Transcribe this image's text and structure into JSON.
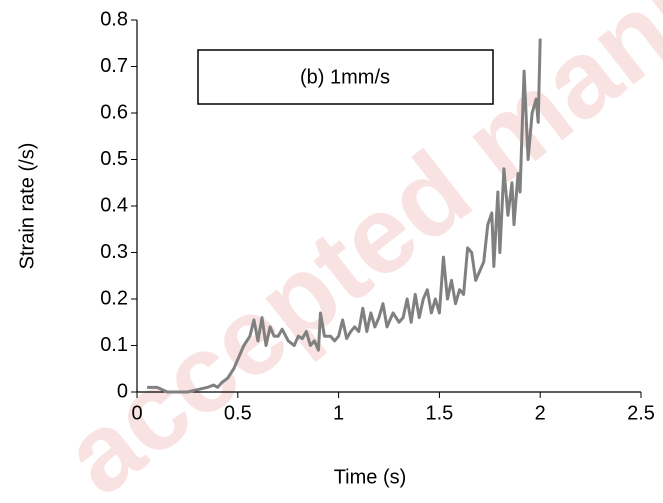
{
  "chart_data": {
    "type": "line",
    "xlabel": "Time (s)",
    "ylabel": "Strain rate (/s)",
    "annotation": "(b)  1mm/s",
    "watermark": "accepted manu",
    "xlim": [
      0,
      2.5
    ],
    "xticks": [
      0,
      0.5,
      1,
      1.5,
      2,
      2.5
    ],
    "ylim": [
      0,
      0.8
    ],
    "yticks": [
      0,
      0.1,
      0.2,
      0.3,
      0.4,
      0.5,
      0.6,
      0.7,
      0.8
    ],
    "grid": false,
    "x": [
      0.05,
      0.1,
      0.15,
      0.25,
      0.3,
      0.35,
      0.38,
      0.4,
      0.42,
      0.45,
      0.48,
      0.5,
      0.53,
      0.56,
      0.58,
      0.6,
      0.62,
      0.64,
      0.66,
      0.68,
      0.7,
      0.72,
      0.75,
      0.78,
      0.8,
      0.82,
      0.84,
      0.86,
      0.88,
      0.9,
      0.91,
      0.93,
      0.96,
      0.98,
      1.0,
      1.02,
      1.04,
      1.06,
      1.08,
      1.1,
      1.12,
      1.14,
      1.16,
      1.18,
      1.2,
      1.22,
      1.24,
      1.27,
      1.3,
      1.32,
      1.34,
      1.36,
      1.38,
      1.4,
      1.42,
      1.44,
      1.46,
      1.48,
      1.5,
      1.52,
      1.54,
      1.56,
      1.58,
      1.6,
      1.62,
      1.64,
      1.66,
      1.68,
      1.7,
      1.72,
      1.74,
      1.76,
      1.77,
      1.79,
      1.8,
      1.82,
      1.84,
      1.86,
      1.87,
      1.89,
      1.9,
      1.92,
      1.94,
      1.96,
      1.98,
      1.99,
      2.0
    ],
    "series": [
      {
        "color": "#808080",
        "values": [
          0.01,
          0.01,
          0,
          0,
          0.005,
          0.01,
          0.015,
          0.01,
          0.02,
          0.03,
          0.05,
          0.07,
          0.1,
          0.12,
          0.155,
          0.11,
          0.16,
          0.1,
          0.14,
          0.12,
          0.12,
          0.135,
          0.11,
          0.1,
          0.12,
          0.115,
          0.13,
          0.1,
          0.11,
          0.09,
          0.17,
          0.12,
          0.12,
          0.11,
          0.12,
          0.155,
          0.115,
          0.13,
          0.14,
          0.13,
          0.18,
          0.13,
          0.17,
          0.14,
          0.16,
          0.19,
          0.14,
          0.17,
          0.15,
          0.16,
          0.2,
          0.15,
          0.21,
          0.16,
          0.2,
          0.22,
          0.17,
          0.2,
          0.17,
          0.29,
          0.2,
          0.24,
          0.19,
          0.22,
          0.21,
          0.31,
          0.3,
          0.24,
          0.26,
          0.28,
          0.36,
          0.385,
          0.27,
          0.43,
          0.3,
          0.48,
          0.38,
          0.45,
          0.36,
          0.47,
          0.43,
          0.69,
          0.5,
          0.6,
          0.63,
          0.58,
          0.76
        ]
      }
    ]
  }
}
